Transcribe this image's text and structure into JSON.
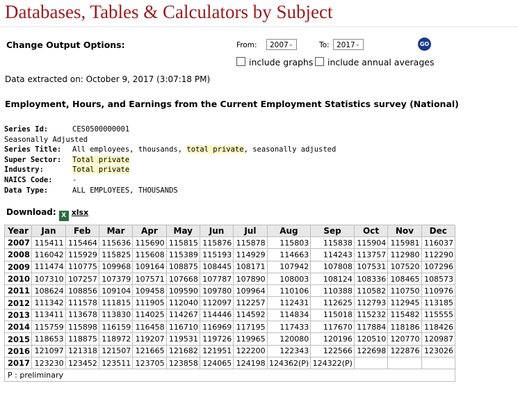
{
  "page": {
    "title": "Databases, Tables & Calculators by Subject"
  },
  "options": {
    "label": "Change Output Options:",
    "from_label": "From:",
    "from_value": "2007",
    "to_label": "To:",
    "to_value": "2017",
    "go_label": "GO",
    "include_graphs": "include graphs",
    "include_annual_averages": "include annual averages"
  },
  "extracted": "Data extracted on: October 9, 2017 (3:07:18 PM)",
  "heading": "Employment, Hours, and Earnings from the Current Employment Statistics survey (National)",
  "meta": {
    "series_id_label": "Series Id:",
    "series_id": "CES0500000001",
    "seasonal": "Seasonally Adjusted",
    "series_title_label": "Series Title:",
    "series_title_a": "All employees, thousands, ",
    "series_title_b": "total private",
    "series_title_c": ", seasonally adjusted",
    "super_sector_label": "Super Sector:",
    "super_sector": "Total private",
    "industry_label": "Industry:",
    "industry": "Total private",
    "naics_label": "NAICS Code:",
    "naics": "-",
    "data_type_label": "Data Type:",
    "data_type": "ALL EMPLOYEES, THOUSANDS"
  },
  "download": {
    "label": "Download:",
    "icon_glyph": "X",
    "link": "xlsx"
  },
  "table": {
    "headers": [
      "Year",
      "Jan",
      "Feb",
      "Mar",
      "Apr",
      "May",
      "Jun",
      "Jul",
      "Aug",
      "Sep",
      "Oct",
      "Nov",
      "Dec"
    ],
    "rows": [
      [
        "2007",
        "115411",
        "115464",
        "115636",
        "115690",
        "115815",
        "115876",
        "115878",
        "115803",
        "115838",
        "115904",
        "115981",
        "116037"
      ],
      [
        "2008",
        "116042",
        "115929",
        "115825",
        "115608",
        "115389",
        "115193",
        "114929",
        "114663",
        "114243",
        "113757",
        "112980",
        "112290"
      ],
      [
        "2009",
        "111474",
        "110775",
        "109968",
        "109164",
        "108875",
        "108445",
        "108171",
        "107942",
        "107808",
        "107531",
        "107520",
        "107296"
      ],
      [
        "2010",
        "107310",
        "107257",
        "107379",
        "107571",
        "107668",
        "107787",
        "107890",
        "108003",
        "108124",
        "108336",
        "108465",
        "108573"
      ],
      [
        "2011",
        "108624",
        "108856",
        "109104",
        "109458",
        "109590",
        "109780",
        "109964",
        "110106",
        "110388",
        "110582",
        "110750",
        "110976"
      ],
      [
        "2012",
        "111342",
        "111578",
        "111815",
        "111905",
        "112040",
        "112097",
        "112257",
        "112431",
        "112625",
        "112793",
        "112945",
        "113185"
      ],
      [
        "2013",
        "113411",
        "113678",
        "113830",
        "114025",
        "114267",
        "114446",
        "114592",
        "114834",
        "115018",
        "115232",
        "115482",
        "115555"
      ],
      [
        "2014",
        "115759",
        "115898",
        "116159",
        "116458",
        "116710",
        "116969",
        "117195",
        "117433",
        "117670",
        "117884",
        "118186",
        "118426"
      ],
      [
        "2015",
        "118653",
        "118875",
        "118972",
        "119207",
        "119531",
        "119726",
        "119965",
        "120080",
        "120196",
        "120510",
        "120770",
        "120987"
      ],
      [
        "2016",
        "121097",
        "121318",
        "121507",
        "121665",
        "121682",
        "121951",
        "122200",
        "122343",
        "122566",
        "122698",
        "122876",
        "123026"
      ],
      [
        "2017",
        "123230",
        "123452",
        "123511",
        "123705",
        "123858",
        "124065",
        "124198",
        "124362(P)",
        "124322(P)",
        "",
        "",
        ""
      ]
    ],
    "footnote": "P : preliminary"
  },
  "colors": {
    "title": "#9a1b1e",
    "go_button": "#1a3a8a",
    "highlight": "#fdf7c3",
    "header_bg": "#e8e8e8"
  }
}
